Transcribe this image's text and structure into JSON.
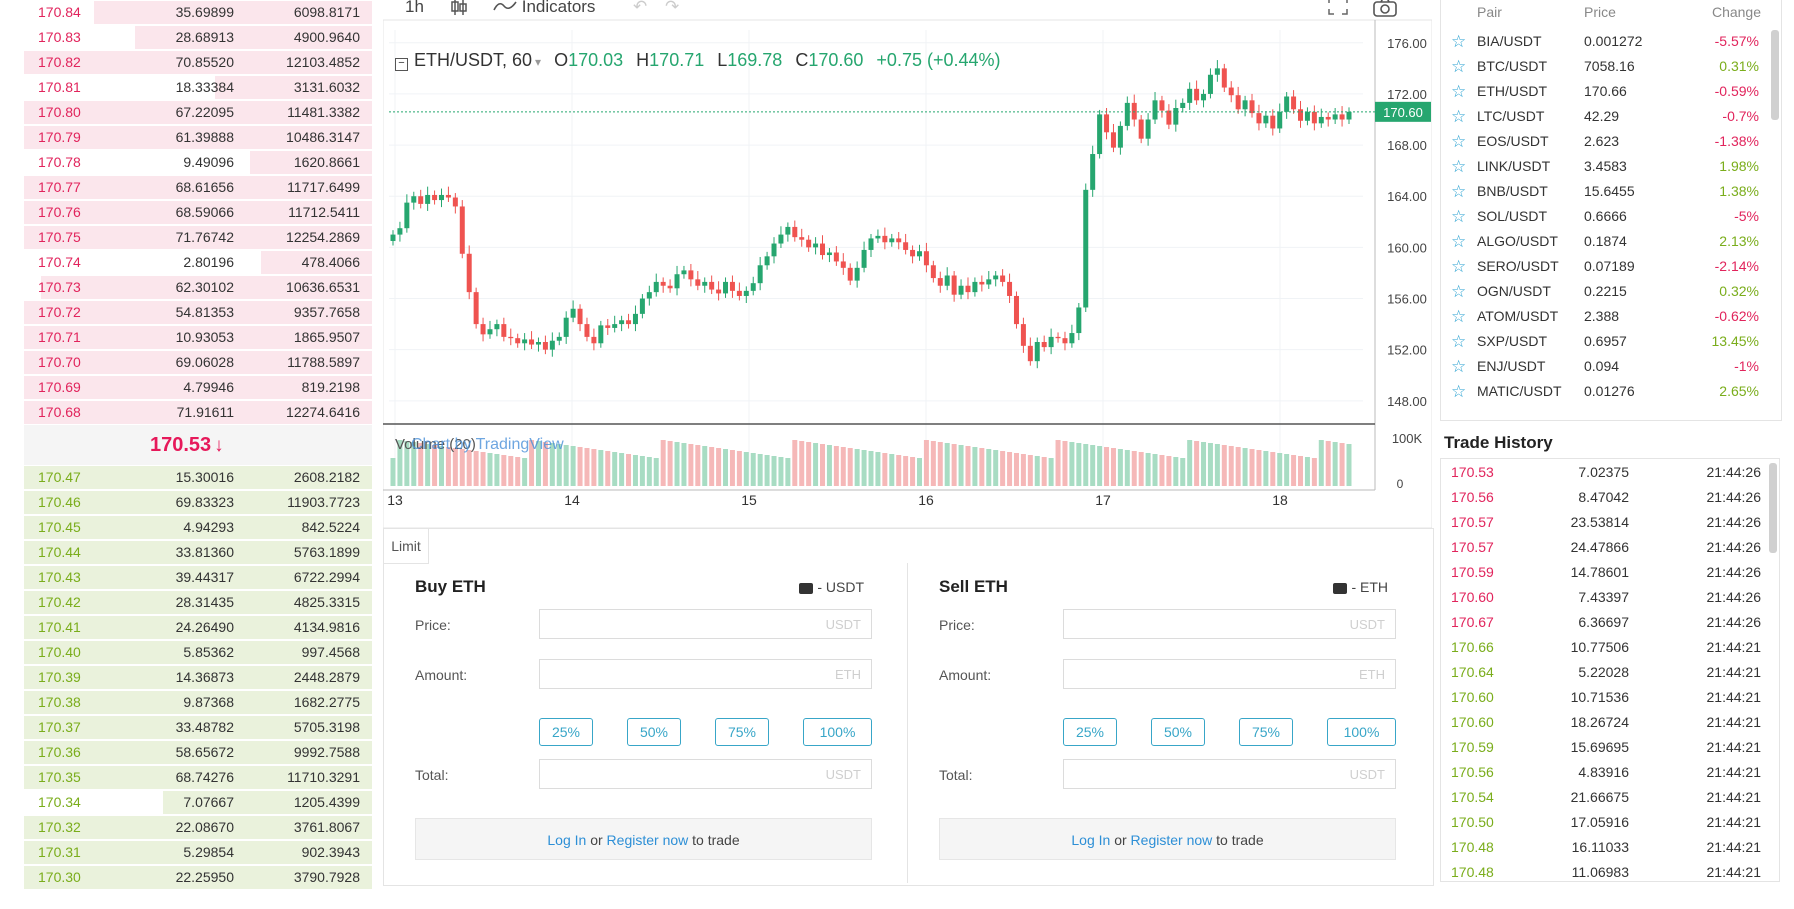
{
  "orderbook": {
    "asks": [
      {
        "price": "170.84",
        "amount": "35.69899",
        "total": "6098.8171",
        "depth": 0.8
      },
      {
        "price": "170.83",
        "amount": "28.68913",
        "total": "4900.9640",
        "depth": 0.68
      },
      {
        "price": "170.82",
        "amount": "70.85520",
        "total": "12103.4852",
        "depth": 1.0
      },
      {
        "price": "170.81",
        "amount": "18.33384",
        "total": "3131.6032",
        "depth": 0.45
      },
      {
        "price": "170.80",
        "amount": "67.22095",
        "total": "11481.3382",
        "depth": 1.0
      },
      {
        "price": "170.79",
        "amount": "61.39888",
        "total": "10486.3147",
        "depth": 1.0
      },
      {
        "price": "170.78",
        "amount": "9.49096",
        "total": "1620.8661",
        "depth": 0.35
      },
      {
        "price": "170.77",
        "amount": "68.61656",
        "total": "11717.6499",
        "depth": 1.0
      },
      {
        "price": "170.76",
        "amount": "68.59066",
        "total": "11712.5411",
        "depth": 1.0
      },
      {
        "price": "170.75",
        "amount": "71.76742",
        "total": "12254.2869",
        "depth": 1.0
      },
      {
        "price": "170.74",
        "amount": "2.80196",
        "total": "478.4066",
        "depth": 0.32
      },
      {
        "price": "170.73",
        "amount": "62.30102",
        "total": "10636.6531",
        "depth": 0.95
      },
      {
        "price": "170.72",
        "amount": "54.81353",
        "total": "9357.7658",
        "depth": 1.0
      },
      {
        "price": "170.71",
        "amount": "10.93053",
        "total": "1865.9507",
        "depth": 1.0
      },
      {
        "price": "170.70",
        "amount": "69.06028",
        "total": "11788.5897",
        "depth": 1.0
      },
      {
        "price": "170.69",
        "amount": "4.79946",
        "total": "819.2198",
        "depth": 1.0
      },
      {
        "price": "170.68",
        "amount": "71.91611",
        "total": "12274.6416",
        "depth": 1.0
      }
    ],
    "last_price": "170.53",
    "last_arrow": "↓",
    "bids": [
      {
        "price": "170.47",
        "amount": "15.30016",
        "total": "2608.2182",
        "depth": 1.0
      },
      {
        "price": "170.46",
        "amount": "69.83323",
        "total": "11903.7723",
        "depth": 1.0
      },
      {
        "price": "170.45",
        "amount": "4.94293",
        "total": "842.5224",
        "depth": 1.0
      },
      {
        "price": "170.44",
        "amount": "33.81360",
        "total": "5763.1899",
        "depth": 1.0
      },
      {
        "price": "170.43",
        "amount": "39.44317",
        "total": "6722.2994",
        "depth": 1.0
      },
      {
        "price": "170.42",
        "amount": "28.31435",
        "total": "4825.3315",
        "depth": 1.0
      },
      {
        "price": "170.41",
        "amount": "24.26490",
        "total": "4134.9816",
        "depth": 1.0
      },
      {
        "price": "170.40",
        "amount": "5.85362",
        "total": "997.4568",
        "depth": 1.0
      },
      {
        "price": "170.39",
        "amount": "14.36873",
        "total": "2448.2879",
        "depth": 1.0
      },
      {
        "price": "170.38",
        "amount": "9.87368",
        "total": "1682.2775",
        "depth": 1.0
      },
      {
        "price": "170.37",
        "amount": "33.48782",
        "total": "5705.3198",
        "depth": 1.0
      },
      {
        "price": "170.36",
        "amount": "58.65672",
        "total": "9992.7588",
        "depth": 1.0
      },
      {
        "price": "170.35",
        "amount": "68.74276",
        "total": "11710.3291",
        "depth": 1.0
      },
      {
        "price": "170.34",
        "amount": "7.07667",
        "total": "1205.4399",
        "depth": 0.6
      },
      {
        "price": "170.32",
        "amount": "22.08670",
        "total": "3761.8067",
        "depth": 1.0
      },
      {
        "price": "170.31",
        "amount": "5.29854",
        "total": "902.3943",
        "depth": 1.0
      },
      {
        "price": "170.30",
        "amount": "22.25950",
        "total": "3790.7928",
        "depth": 1.0
      }
    ]
  },
  "chart_toolbar": {
    "interval": "1h",
    "indicators": "Indicators"
  },
  "chart_legend": {
    "symbol": "ETH/USDT, 60",
    "o_label": "O",
    "o_value": "170.03",
    "h_label": "H",
    "h_value": "170.71",
    "l_label": "L",
    "l_value": "169.78",
    "c_label": "C",
    "c_value": "170.60",
    "change": "+0.75 (+0.44%)",
    "volume_label": "Volume (20)",
    "watermark": "Chart by TradingView"
  },
  "chart_data": {
    "type": "candlestick",
    "title": "ETH/USDT, 60",
    "x_ticks": [
      "13",
      "14",
      "15",
      "16",
      "17",
      "18"
    ],
    "y_ticks": [
      "176.00",
      "172.00",
      "168.00",
      "164.00",
      "160.00",
      "156.00",
      "152.00",
      "148.00"
    ],
    "ylim": [
      146.5,
      177.0
    ],
    "last_price_label": "170.60",
    "volume_ticks": [
      "100K",
      "0"
    ],
    "closes": [
      161.0,
      161.5,
      163.5,
      164.0,
      163.4,
      164.1,
      163.7,
      164.1,
      163.9,
      163.2,
      159.5,
      156.5,
      154.0,
      153.2,
      153.6,
      154.0,
      153.0,
      152.9,
      152.5,
      152.8,
      152.4,
      152.6,
      152.0,
      152.7,
      153.0,
      154.5,
      155.2,
      154.0,
      153.0,
      152.5,
      153.9,
      153.7,
      154.0,
      154.3,
      154.0,
      154.8,
      156.0,
      156.5,
      157.3,
      157.0,
      156.8,
      157.9,
      158.2,
      157.5,
      157.0,
      157.3,
      156.7,
      156.4,
      157.3,
      156.6,
      156.2,
      156.6,
      157.2,
      158.6,
      159.3,
      160.3,
      161.0,
      161.6,
      160.8,
      160.6,
      160.0,
      160.3,
      159.4,
      159.6,
      158.9,
      158.4,
      157.4,
      158.4,
      159.8,
      160.7,
      160.9,
      160.4,
      160.7,
      160.4,
      159.8,
      159.3,
      159.7,
      158.6,
      157.6,
      157.0,
      157.8,
      156.3,
      157.0,
      156.5,
      157.3,
      157.1,
      157.5,
      157.8,
      157.3,
      156.2,
      154.0,
      152.3,
      151.1,
      152.6,
      152.2,
      153.0,
      152.9,
      152.5,
      153.3,
      155.3,
      164.5,
      167.3,
      170.4,
      169.0,
      167.8,
      169.5,
      171.3,
      170.0,
      168.5,
      170.0,
      171.5,
      170.7,
      169.6,
      170.9,
      171.3,
      172.4,
      171.5,
      172.0,
      173.5,
      174.0,
      172.5,
      171.9,
      170.8,
      171.5,
      170.5,
      169.7,
      170.3,
      169.3,
      170.6,
      171.8,
      170.8,
      169.9,
      170.6,
      169.7,
      170.2,
      170.0,
      170.4,
      170.0,
      170.6
    ]
  },
  "trade_form": {
    "tab": "Limit",
    "buy": {
      "title": "Buy ETH",
      "wallet": "- USDT",
      "price_label": "Price:",
      "price_placeholder": "USDT",
      "amount_label": "Amount:",
      "amount_placeholder": "ETH",
      "total_label": "Total:",
      "total_placeholder": "USDT",
      "pcts": [
        "25%",
        "50%",
        "75%",
        "100%"
      ],
      "login": "Log In",
      "or": "or",
      "register": "Register now",
      "to_trade": "to trade"
    },
    "sell": {
      "title": "Sell ETH",
      "wallet": "- ETH",
      "price_label": "Price:",
      "price_placeholder": "USDT",
      "amount_label": "Amount:",
      "amount_placeholder": "ETH",
      "total_label": "Total:",
      "total_placeholder": "USDT",
      "pcts": [
        "25%",
        "50%",
        "75%",
        "100%"
      ],
      "login": "Log In",
      "or": "or",
      "register": "Register now",
      "to_trade": "to trade"
    }
  },
  "markets": {
    "headers": {
      "pair": "Pair",
      "price": "Price",
      "change": "Change"
    },
    "rows": [
      {
        "pair": "BIA/USDT",
        "price": "0.001272",
        "change": "-5.57%",
        "dir": "dn"
      },
      {
        "pair": "BTC/USDT",
        "price": "7058.16",
        "change": "0.31%",
        "dir": "up"
      },
      {
        "pair": "ETH/USDT",
        "price": "170.66",
        "change": "-0.59%",
        "dir": "dn"
      },
      {
        "pair": "LTC/USDT",
        "price": "42.29",
        "change": "-0.7%",
        "dir": "dn"
      },
      {
        "pair": "EOS/USDT",
        "price": "2.623",
        "change": "-1.38%",
        "dir": "dn"
      },
      {
        "pair": "LINK/USDT",
        "price": "3.4583",
        "change": "1.98%",
        "dir": "up"
      },
      {
        "pair": "BNB/USDT",
        "price": "15.6455",
        "change": "1.38%",
        "dir": "up"
      },
      {
        "pair": "SOL/USDT",
        "price": "0.6666",
        "change": "-5%",
        "dir": "dn"
      },
      {
        "pair": "ALGO/USDT",
        "price": "0.1874",
        "change": "2.13%",
        "dir": "up"
      },
      {
        "pair": "SERO/USDT",
        "price": "0.07189",
        "change": "-2.14%",
        "dir": "dn"
      },
      {
        "pair": "OGN/USDT",
        "price": "0.2215",
        "change": "0.32%",
        "dir": "up"
      },
      {
        "pair": "ATOM/USDT",
        "price": "2.388",
        "change": "-0.62%",
        "dir": "dn"
      },
      {
        "pair": "SXP/USDT",
        "price": "0.6957",
        "change": "13.45%",
        "dir": "up"
      },
      {
        "pair": "ENJ/USDT",
        "price": "0.094",
        "change": "-1%",
        "dir": "dn"
      },
      {
        "pair": "MATIC/USDT",
        "price": "0.01276",
        "change": "2.65%",
        "dir": "up"
      }
    ]
  },
  "trade_history": {
    "title": "Trade History",
    "rows": [
      {
        "price": "170.53",
        "amount": "7.02375",
        "time": "21:44:26",
        "dir": "dn"
      },
      {
        "price": "170.56",
        "amount": "8.47042",
        "time": "21:44:26",
        "dir": "dn"
      },
      {
        "price": "170.57",
        "amount": "23.53814",
        "time": "21:44:26",
        "dir": "dn"
      },
      {
        "price": "170.57",
        "amount": "24.47866",
        "time": "21:44:26",
        "dir": "dn"
      },
      {
        "price": "170.59",
        "amount": "14.78601",
        "time": "21:44:26",
        "dir": "dn"
      },
      {
        "price": "170.60",
        "amount": "7.43397",
        "time": "21:44:26",
        "dir": "dn"
      },
      {
        "price": "170.67",
        "amount": "6.36697",
        "time": "21:44:26",
        "dir": "dn"
      },
      {
        "price": "170.66",
        "amount": "10.77506",
        "time": "21:44:21",
        "dir": "up"
      },
      {
        "price": "170.64",
        "amount": "5.22028",
        "time": "21:44:21",
        "dir": "up"
      },
      {
        "price": "170.60",
        "amount": "10.71536",
        "time": "21:44:21",
        "dir": "up"
      },
      {
        "price": "170.60",
        "amount": "18.26724",
        "time": "21:44:21",
        "dir": "up"
      },
      {
        "price": "170.59",
        "amount": "15.69695",
        "time": "21:44:21",
        "dir": "up"
      },
      {
        "price": "170.56",
        "amount": "4.83916",
        "time": "21:44:21",
        "dir": "up"
      },
      {
        "price": "170.54",
        "amount": "21.66675",
        "time": "21:44:21",
        "dir": "up"
      },
      {
        "price": "170.50",
        "amount": "17.05916",
        "time": "21:44:21",
        "dir": "up"
      },
      {
        "price": "170.48",
        "amount": "16.11033",
        "time": "21:44:21",
        "dir": "up"
      },
      {
        "price": "170.48",
        "amount": "11.06983",
        "time": "21:44:21",
        "dir": "up"
      }
    ]
  }
}
